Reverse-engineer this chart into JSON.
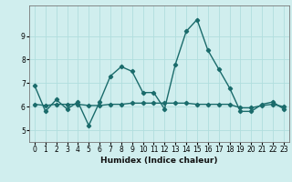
{
  "xlabel": "Humidex (Indice chaleur)",
  "x": [
    0,
    1,
    2,
    3,
    4,
    5,
    6,
    7,
    8,
    9,
    10,
    11,
    12,
    13,
    14,
    15,
    16,
    17,
    18,
    19,
    20,
    21,
    22,
    23
  ],
  "line1": [
    6.9,
    5.8,
    6.3,
    5.9,
    6.2,
    5.2,
    6.2,
    7.3,
    7.7,
    7.5,
    6.6,
    6.6,
    5.9,
    7.8,
    9.2,
    9.7,
    8.4,
    7.6,
    6.8,
    5.8,
    5.8,
    6.1,
    6.2,
    5.9
  ],
  "line2": [
    6.1,
    6.05,
    6.1,
    6.1,
    6.1,
    6.05,
    6.05,
    6.1,
    6.1,
    6.15,
    6.15,
    6.15,
    6.15,
    6.15,
    6.15,
    6.1,
    6.1,
    6.1,
    6.1,
    5.95,
    5.95,
    6.05,
    6.1,
    6.0
  ],
  "line_color": "#1a6b6b",
  "bg_color": "#d0eeee",
  "grid_color": "#b0dede",
  "ylim_min": 4.5,
  "ylim_max": 10.3,
  "yticks": [
    5,
    6,
    7,
    8,
    9
  ],
  "marker": "D",
  "marker_size": 2.2,
  "line_width": 1.0,
  "tick_fontsize": 5.5,
  "xlabel_fontsize": 6.5
}
